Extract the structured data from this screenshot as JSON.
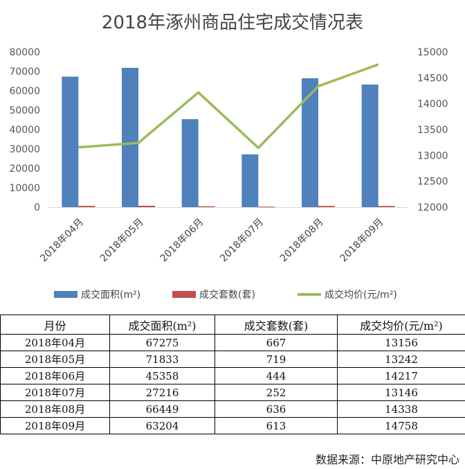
{
  "chart_data": {
    "type": "bar",
    "title": "2018年涿州商品住宅成交情况表",
    "categories": [
      "2018年04月",
      "2018年05月",
      "2018年06月",
      "2018年07月",
      "2018年08月",
      "2018年09月"
    ],
    "series": [
      {
        "name": "成交面积(m²)",
        "kind": "bar",
        "axis": "left",
        "color": "#4f81bd",
        "values": [
          67275,
          71833,
          45358,
          27216,
          66449,
          63204
        ]
      },
      {
        "name": "成交套数(套)",
        "kind": "bar",
        "axis": "left",
        "color": "#c0504d",
        "values": [
          667,
          719,
          444,
          252,
          636,
          613
        ]
      },
      {
        "name": "成交均价(元/m²)",
        "kind": "line",
        "axis": "right",
        "color": "#9bbb59",
        "values": [
          13156,
          13242,
          14217,
          13146,
          14338,
          14758
        ]
      }
    ],
    "y_left": {
      "min": 0,
      "max": 80000,
      "ticks": [
        "0",
        "10000",
        "20000",
        "30000",
        "40000",
        "50000",
        "60000",
        "70000",
        "80000"
      ]
    },
    "y_right": {
      "min": 12000,
      "max": 15000,
      "ticks": [
        "12000",
        "12500",
        "13000",
        "13500",
        "14000",
        "14500",
        "15000"
      ]
    },
    "grid": false,
    "legend_position": "bottom"
  },
  "table": {
    "headers": [
      "月份",
      "成交面积(m²)",
      "成交套数(套)",
      "成交均价(元/m²)"
    ],
    "rows": [
      [
        "2018年04月",
        "67275",
        "667",
        "13156"
      ],
      [
        "2018年05月",
        "71833",
        "719",
        "13242"
      ],
      [
        "2018年06月",
        "45358",
        "444",
        "14217"
      ],
      [
        "2018年07月",
        "27216",
        "252",
        "13146"
      ],
      [
        "2018年08月",
        "66449",
        "636",
        "14338"
      ],
      [
        "2018年09月",
        "63204",
        "613",
        "14758"
      ]
    ]
  },
  "source": "数据来源：中原地产研究中心"
}
